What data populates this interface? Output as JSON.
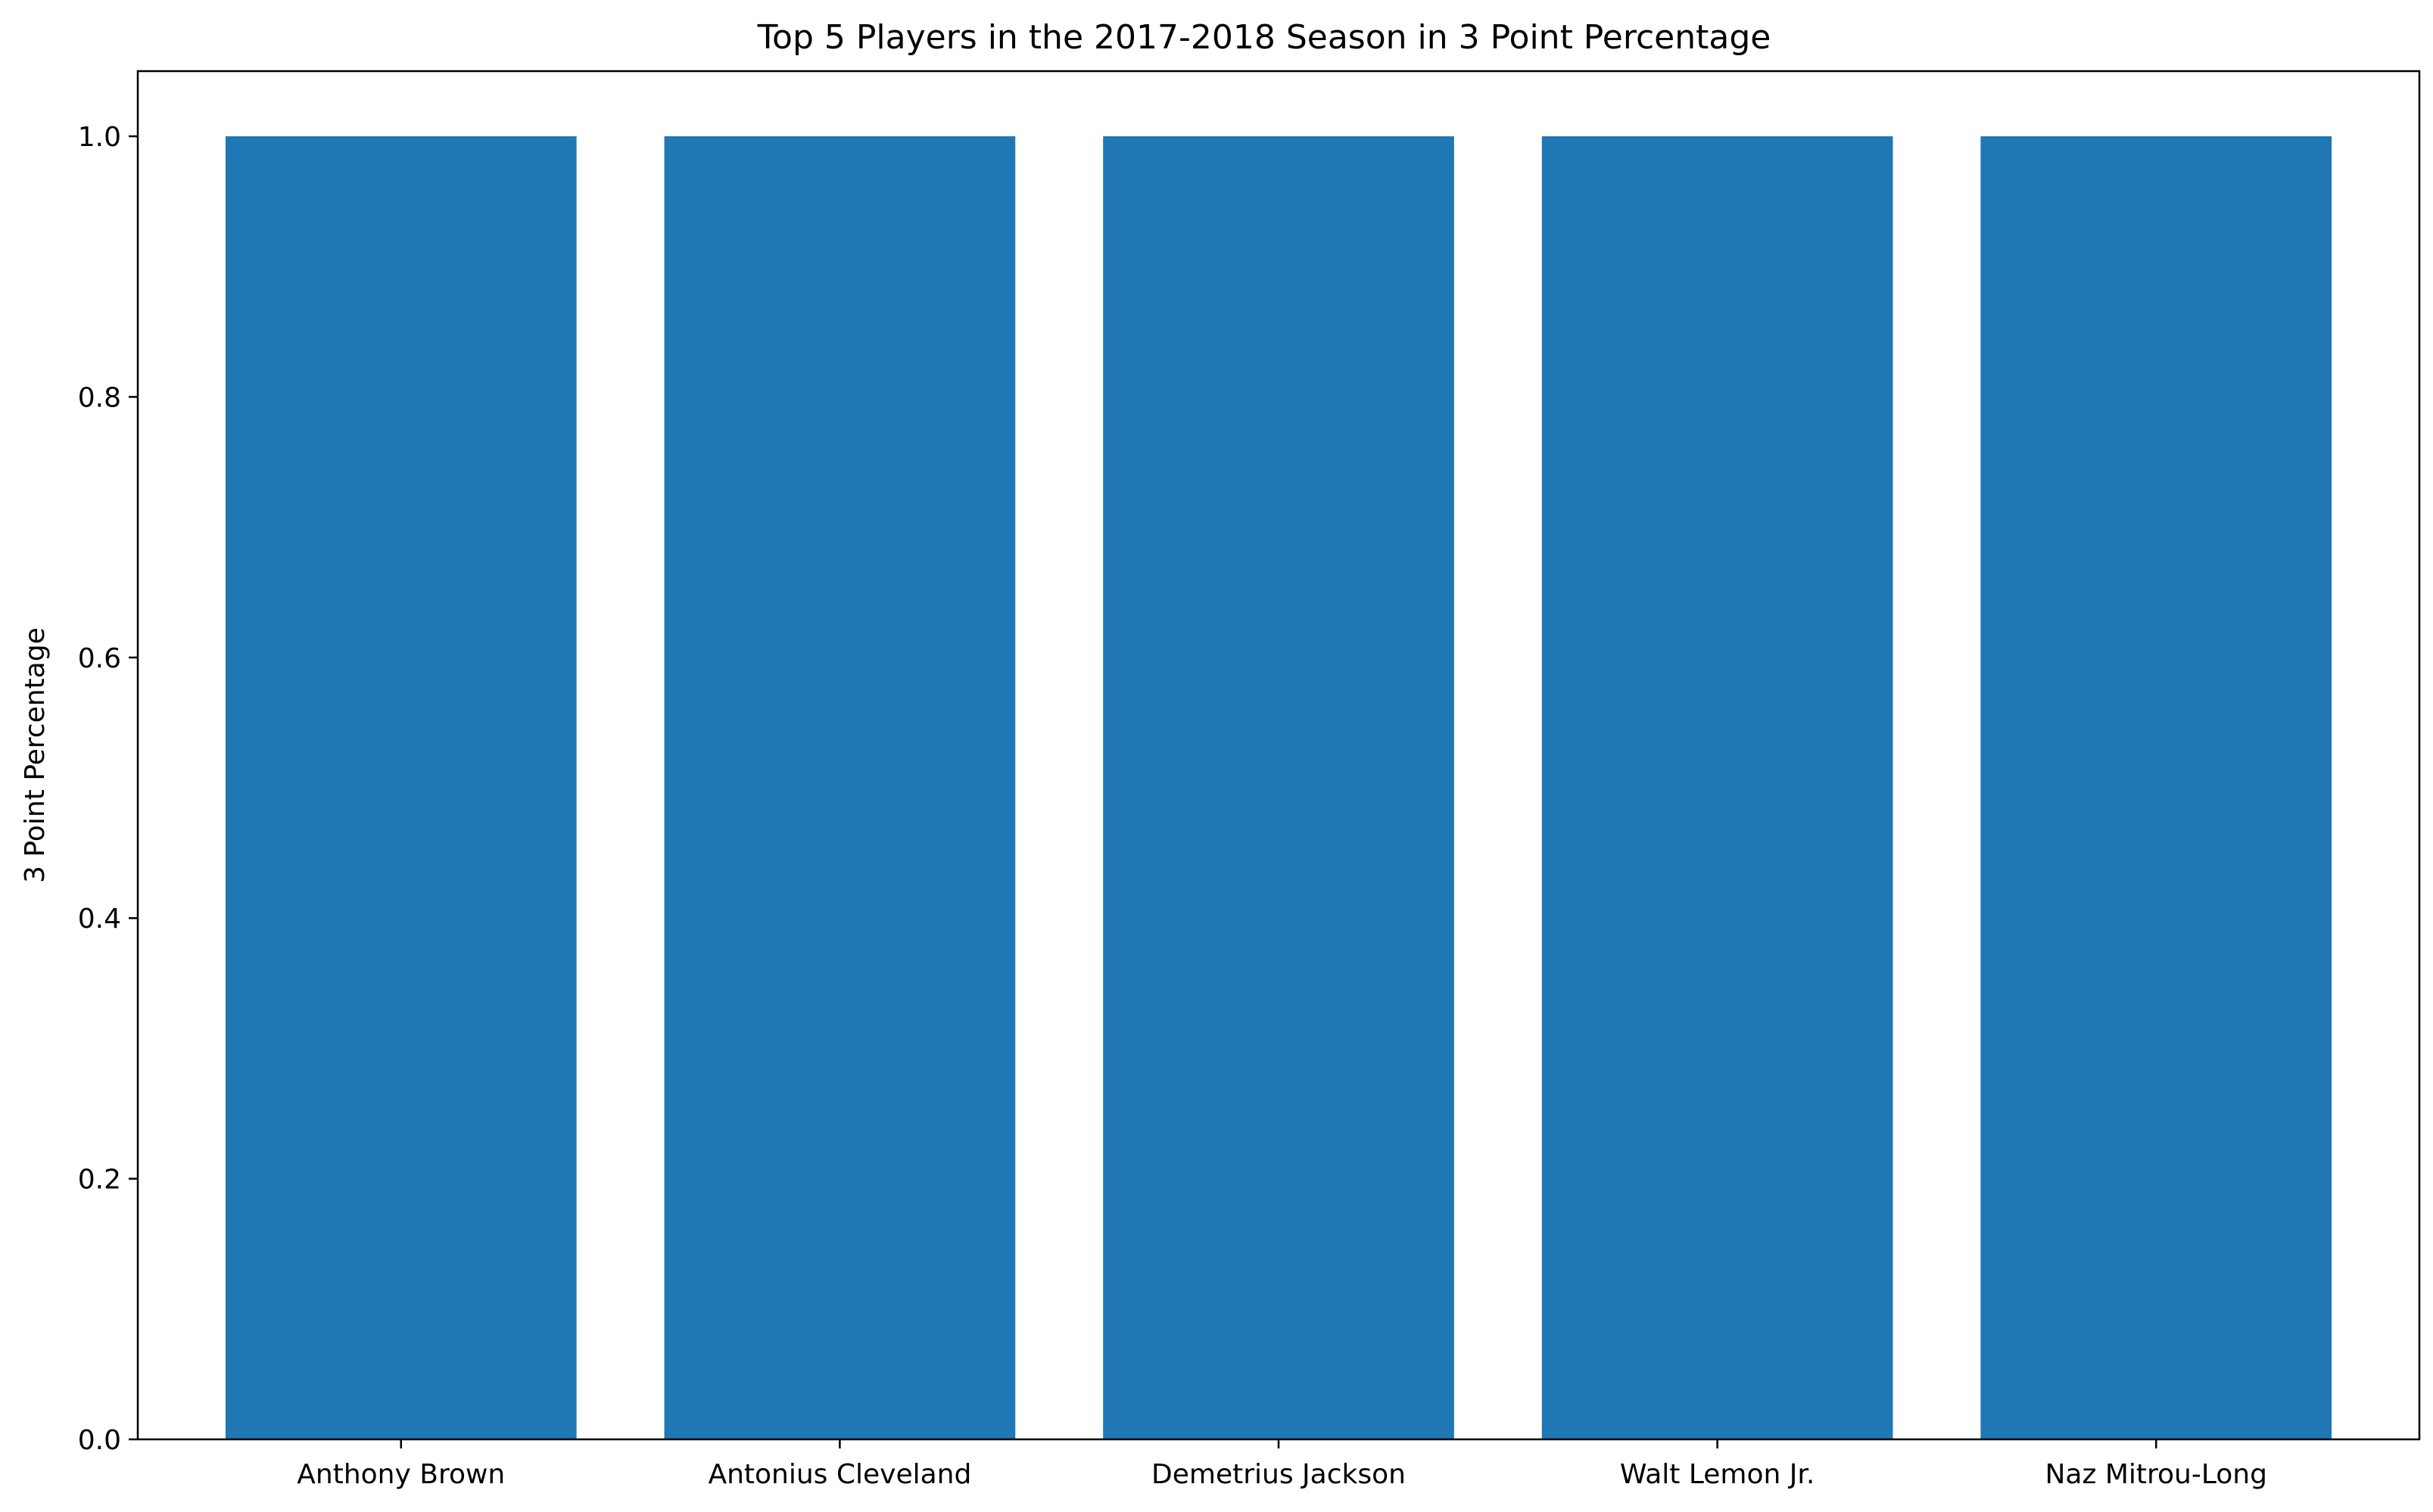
{
  "chart_data": {
    "type": "bar",
    "title": "Top 5 Players in the 2017-2018 Season in 3 Point Percentage",
    "xlabel": "",
    "ylabel": "3 Point Percentage",
    "categories": [
      "Anthony Brown",
      "Antonius Cleveland",
      "Demetrius Jackson",
      "Walt Lemon Jr.",
      "Naz Mitrou-Long"
    ],
    "values": [
      1.0,
      1.0,
      1.0,
      1.0,
      1.0
    ],
    "ylim": [
      0,
      1.05
    ],
    "yticks": [
      0.0,
      0.2,
      0.4,
      0.6,
      0.8,
      1.0
    ],
    "ytick_labels": [
      "0.0",
      "0.2",
      "0.4",
      "0.6",
      "0.8",
      "1.0"
    ],
    "grid": false,
    "bar_color": "#1f77b4"
  }
}
